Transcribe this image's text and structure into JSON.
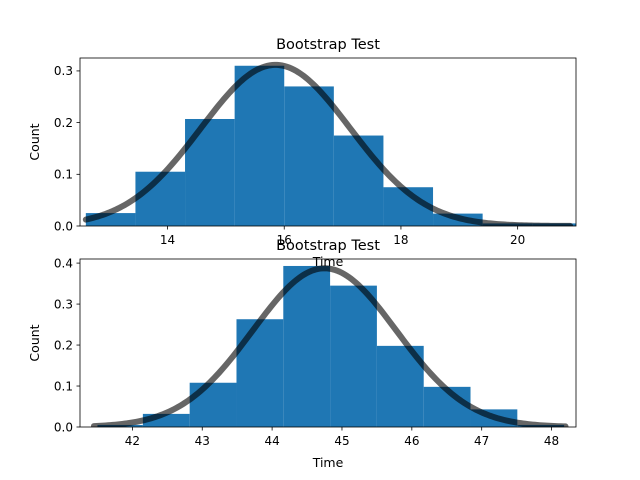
{
  "chart_data": [
    {
      "type": "bar",
      "title": "Bootstrap Test",
      "xlabel": "Time",
      "ylabel": "Count",
      "xlim": [
        12.5,
        21.0
      ],
      "ylim": [
        0,
        0.325
      ],
      "xticks": [
        14,
        16,
        18,
        20
      ],
      "yticks": [
        0.0,
        0.1,
        0.2,
        0.3
      ],
      "bar_color": "#1f77b4",
      "bins": [
        {
          "x0": 12.6,
          "x1": 13.45,
          "value": 0.025
        },
        {
          "x0": 13.45,
          "x1": 14.3,
          "value": 0.105
        },
        {
          "x0": 14.3,
          "x1": 15.15,
          "value": 0.207
        },
        {
          "x0": 15.15,
          "x1": 16.0,
          "value": 0.31
        },
        {
          "x0": 16.0,
          "x1": 16.85,
          "value": 0.27
        },
        {
          "x0": 16.85,
          "x1": 17.7,
          "value": 0.175
        },
        {
          "x0": 17.7,
          "x1": 18.55,
          "value": 0.075
        },
        {
          "x0": 18.55,
          "x1": 19.4,
          "value": 0.024
        },
        {
          "x0": 19.4,
          "x1": 20.25,
          "value": 0.005
        },
        {
          "x0": 20.25,
          "x1": 21.0,
          "value": 0.005
        }
      ],
      "curve": {
        "type": "normal-pdf",
        "mean": 15.85,
        "sd": 1.28,
        "x_range": [
          12.6,
          20.9
        ],
        "color": "#000000",
        "opacity": 0.6
      }
    },
    {
      "type": "bar",
      "title": "Bootstrap Test",
      "xlabel": "Time",
      "ylabel": "Count",
      "xlim": [
        41.25,
        48.35
      ],
      "ylim": [
        0,
        0.41
      ],
      "xticks": [
        42,
        43,
        44,
        45,
        46,
        47,
        48
      ],
      "yticks": [
        0.0,
        0.1,
        0.2,
        0.3,
        0.4
      ],
      "bar_color": "#1f77b4",
      "bins": [
        {
          "x0": 41.5,
          "x1": 42.15,
          "value": 0.005
        },
        {
          "x0": 42.15,
          "x1": 42.82,
          "value": 0.032
        },
        {
          "x0": 42.82,
          "x1": 43.49,
          "value": 0.108
        },
        {
          "x0": 43.49,
          "x1": 44.16,
          "value": 0.263
        },
        {
          "x0": 44.16,
          "x1": 44.83,
          "value": 0.393
        },
        {
          "x0": 44.83,
          "x1": 45.5,
          "value": 0.345
        },
        {
          "x0": 45.5,
          "x1": 46.17,
          "value": 0.198
        },
        {
          "x0": 46.17,
          "x1": 46.84,
          "value": 0.098
        },
        {
          "x0": 46.84,
          "x1": 47.51,
          "value": 0.043
        },
        {
          "x0": 47.51,
          "x1": 48.18,
          "value": 0.005
        }
      ],
      "curve": {
        "type": "normal-pdf",
        "mean": 44.75,
        "sd": 1.03,
        "x_range": [
          41.45,
          48.2
        ],
        "color": "#000000",
        "opacity": 0.6
      }
    }
  ]
}
